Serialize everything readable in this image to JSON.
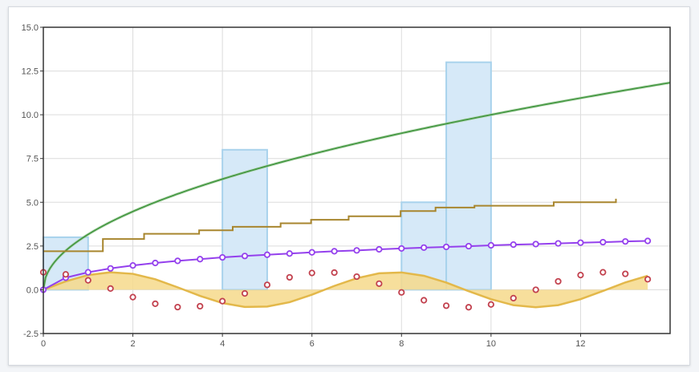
{
  "chart_data": {
    "type": "line",
    "title": "",
    "xlabel": "",
    "ylabel": "",
    "xlim": [
      0,
      14
    ],
    "ylim": [
      -2.5,
      15
    ],
    "grid": true,
    "x_ticks": [
      0,
      2,
      4,
      6,
      8,
      10,
      12
    ],
    "x_tick_labels": [
      "0",
      "2",
      "4",
      "6",
      "8",
      "10",
      "12"
    ],
    "y_ticks": [
      -2.5,
      0,
      2.5,
      5,
      7.5,
      10,
      12.5,
      15
    ],
    "y_tick_labels": [
      "-2.5",
      "0.0",
      "2.5",
      "5.0",
      "7.5",
      "10.0",
      "12.5",
      "15.0"
    ],
    "colors": {
      "bars_fill": "#d6e9f8",
      "bars_stroke": "#a8d2ec",
      "sqrt_line": "#4a9b47",
      "steps_line": "#a8862e",
      "log_line": "#9440ed",
      "log_marker": "#d0506a",
      "sin_area_fill": "#f6d98b",
      "sin_line": "#e3b84a",
      "cos_points": "#c2414e"
    },
    "series": [
      {
        "type": "bar",
        "x": [
          0,
          4,
          8,
          9
        ],
        "width": 1,
        "values": [
          3,
          8,
          5,
          13
        ]
      },
      {
        "type": "line",
        "function": "sqrt(10x)",
        "x_range": [
          0,
          14
        ]
      },
      {
        "type": "step",
        "x": [
          0,
          1.33,
          2.25,
          3.48,
          4.23,
          5.3,
          5.98,
          6.82,
          7.98,
          8.76,
          9.63,
          11.4,
          12.79
        ],
        "values": [
          2.2,
          2.9,
          3.2,
          3.4,
          3.6,
          3.8,
          4.0,
          4.2,
          4.5,
          4.7,
          4.8,
          5.0,
          5.2
        ]
      },
      {
        "type": "line",
        "x": [
          0,
          0.5,
          1,
          1.5,
          2,
          2.5,
          3,
          3.5,
          4,
          4.5,
          5,
          5.5,
          6,
          6.5,
          7,
          7.5,
          8,
          8.5,
          9,
          9.5,
          10,
          10.5,
          11,
          11.5,
          12,
          12.5,
          13,
          13.5
        ],
        "values": [
          0.0,
          0.69,
          1.0,
          1.22,
          1.39,
          1.53,
          1.65,
          1.75,
          1.85,
          1.93,
          2.0,
          2.07,
          2.14,
          2.2,
          2.25,
          2.31,
          2.36,
          2.41,
          2.45,
          2.49,
          2.54,
          2.58,
          2.61,
          2.65,
          2.69,
          2.72,
          2.76,
          2.79
        ]
      },
      {
        "type": "area",
        "x": [
          0,
          0.5,
          1,
          1.5,
          2,
          2.5,
          3,
          3.5,
          4,
          4.5,
          5,
          5.5,
          6,
          6.5,
          7,
          7.5,
          8,
          8.5,
          9,
          9.5,
          10,
          10.5,
          11,
          11.5,
          12,
          12.5,
          13,
          13.5
        ],
        "values": [
          0.0,
          0.48,
          0.84,
          1.0,
          0.91,
          0.6,
          0.14,
          -0.35,
          -0.76,
          -0.98,
          -0.96,
          -0.71,
          -0.28,
          0.22,
          0.66,
          0.94,
          0.99,
          0.8,
          0.41,
          -0.08,
          -0.54,
          -0.88,
          -1.0,
          -0.88,
          -0.54,
          -0.07,
          0.42,
          0.8
        ]
      },
      {
        "type": "scatter",
        "x": [
          0,
          0.5,
          1,
          1.5,
          2,
          2.5,
          3,
          3.5,
          4,
          4.5,
          5,
          5.5,
          6,
          6.5,
          7,
          7.5,
          8,
          8.5,
          9,
          9.5,
          10,
          10.5,
          11,
          11.5,
          12,
          12.5,
          13,
          13.5
        ],
        "values": [
          1.0,
          0.88,
          0.54,
          0.07,
          -0.42,
          -0.8,
          -0.99,
          -0.94,
          -0.65,
          -0.21,
          0.28,
          0.71,
          0.96,
          0.98,
          0.75,
          0.35,
          -0.15,
          -0.6,
          -0.91,
          -1.0,
          -0.84,
          -0.48,
          0.0,
          0.48,
          0.84,
          1.0,
          0.91,
          0.6
        ]
      }
    ]
  }
}
